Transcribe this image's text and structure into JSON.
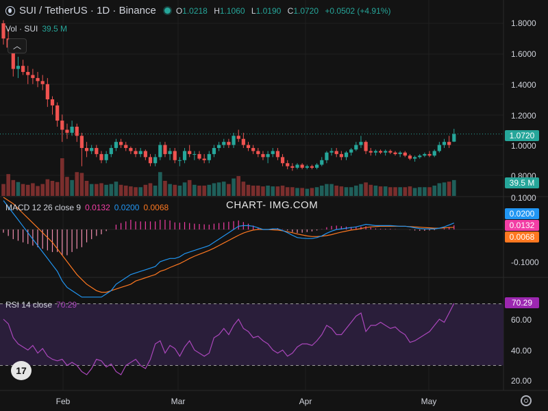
{
  "header": {
    "symbol": "SUI / TetherUS · 1D · Binance",
    "open_label": "O",
    "open": "1.0218",
    "high_label": "H",
    "high": "1.1060",
    "low_label": "L",
    "low": "1.0190",
    "close_label": "C",
    "close": "1.0720",
    "change": "+0.0502 (+4.91%)"
  },
  "volume": {
    "label": "Vol · SUI",
    "value": "39.5 M"
  },
  "macd": {
    "label": "MACD 12 26 close 9",
    "hist": "0.0132",
    "macd": "0.0200",
    "signal": "0.0068"
  },
  "rsi": {
    "label": "RSI 14 close",
    "value": "70.29"
  },
  "watermark": "CHART- IMG.COM",
  "colors": {
    "up": "#26a69a",
    "down": "#ef5350",
    "macd": "#2196f3",
    "signal": "#ff7820",
    "hist_pos": "#f23ea5",
    "rsi": "#ab47bc",
    "rsi_band": "#2a1e3a"
  },
  "price_axis": [
    "1.8000",
    "1.6000",
    "1.4000",
    "1.2000",
    "1.0000",
    "0.8000"
  ],
  "macd_axis": [
    "0.1000",
    "-0.1000"
  ],
  "rsi_axis": [
    "60.00",
    "40.00",
    "20.00"
  ],
  "time_axis": [
    "Feb",
    "Mar",
    "Apr",
    "May"
  ],
  "badges": {
    "price": "1.0720",
    "volume": "39.5 M",
    "macd": "0.0200",
    "hist": "0.0132",
    "signal": "0.0068",
    "rsi": "70.29"
  },
  "chart_data": {
    "type": "candlestick",
    "title": "SUI / TetherUS · 1D · Binance",
    "price_range": [
      0.8,
      1.85
    ],
    "rsi_levels": [
      70,
      30
    ],
    "candles": [
      [
        1.8,
        1.82,
        1.66,
        1.7
      ],
      [
        1.7,
        1.76,
        1.62,
        1.64
      ],
      [
        1.64,
        1.68,
        1.45,
        1.5
      ],
      [
        1.5,
        1.58,
        1.44,
        1.52
      ],
      [
        1.52,
        1.56,
        1.46,
        1.48
      ],
      [
        1.48,
        1.52,
        1.4,
        1.46
      ],
      [
        1.46,
        1.5,
        1.4,
        1.44
      ],
      [
        1.44,
        1.48,
        1.38,
        1.42
      ],
      [
        1.42,
        1.46,
        1.36,
        1.4
      ],
      [
        1.4,
        1.44,
        1.25,
        1.3
      ],
      [
        1.3,
        1.32,
        1.2,
        1.26
      ],
      [
        1.26,
        1.28,
        1.12,
        1.16
      ],
      [
        1.16,
        1.2,
        1.02,
        1.1
      ],
      [
        1.1,
        1.14,
        1.04,
        1.08
      ],
      [
        1.08,
        1.16,
        1.06,
        1.12
      ],
      [
        1.12,
        1.14,
        1.02,
        1.06
      ],
      [
        1.06,
        1.08,
        0.86,
        0.98
      ],
      [
        0.98,
        1.02,
        0.92,
        0.96
      ],
      [
        0.96,
        1.0,
        0.94,
        0.98
      ],
      [
        0.98,
        1.0,
        0.92,
        0.94
      ],
      [
        0.94,
        0.96,
        0.88,
        0.9
      ],
      [
        0.9,
        0.96,
        0.88,
        0.94
      ],
      [
        0.94,
        1.0,
        0.92,
        0.98
      ],
      [
        0.98,
        1.04,
        0.96,
        1.02
      ],
      [
        1.02,
        1.04,
        0.98,
        1.0
      ],
      [
        1.0,
        1.02,
        0.96,
        0.98
      ],
      [
        0.98,
        0.99,
        0.94,
        0.96
      ],
      [
        0.96,
        0.98,
        0.92,
        0.94
      ],
      [
        0.94,
        0.98,
        0.92,
        0.96
      ],
      [
        0.96,
        0.97,
        0.9,
        0.92
      ],
      [
        0.92,
        0.94,
        0.86,
        0.88
      ],
      [
        0.88,
        0.94,
        0.86,
        0.92
      ],
      [
        0.92,
        1.02,
        0.9,
        1.0
      ],
      [
        1.0,
        1.02,
        0.92,
        0.94
      ],
      [
        0.94,
        0.98,
        0.9,
        0.96
      ],
      [
        0.96,
        0.98,
        0.88,
        0.9
      ],
      [
        0.9,
        0.92,
        0.86,
        0.9
      ],
      [
        0.9,
        0.98,
        0.88,
        0.96
      ],
      [
        0.96,
        1.0,
        0.92,
        0.94
      ],
      [
        0.94,
        0.96,
        0.9,
        0.94
      ],
      [
        0.94,
        0.96,
        0.9,
        0.91
      ],
      [
        0.91,
        0.94,
        0.88,
        0.9
      ],
      [
        0.9,
        0.96,
        0.88,
        0.94
      ],
      [
        0.94,
        1.0,
        0.92,
        0.98
      ],
      [
        0.98,
        1.02,
        0.96,
        1.0
      ],
      [
        1.0,
        1.04,
        0.98,
        1.02
      ],
      [
        1.02,
        1.04,
        0.98,
        1.0
      ],
      [
        1.0,
        1.08,
        0.98,
        1.06
      ],
      [
        1.06,
        1.1,
        1.02,
        1.04
      ],
      [
        1.04,
        1.08,
        0.98,
        1.0
      ],
      [
        1.0,
        1.02,
        0.96,
        0.98
      ],
      [
        0.98,
        1.0,
        0.94,
        0.96
      ],
      [
        0.96,
        0.98,
        0.92,
        0.94
      ],
      [
        0.94,
        0.96,
        0.9,
        0.92
      ],
      [
        0.92,
        0.96,
        0.88,
        0.94
      ],
      [
        0.94,
        0.98,
        0.92,
        0.96
      ],
      [
        0.96,
        0.98,
        0.9,
        0.92
      ],
      [
        0.92,
        0.94,
        0.86,
        0.88
      ],
      [
        0.88,
        0.9,
        0.84,
        0.86
      ],
      [
        0.86,
        0.88,
        0.83,
        0.85
      ],
      [
        0.85,
        0.88,
        0.84,
        0.87
      ],
      [
        0.87,
        0.88,
        0.84,
        0.85
      ],
      [
        0.85,
        0.87,
        0.84,
        0.86
      ],
      [
        0.86,
        0.87,
        0.84,
        0.85
      ],
      [
        0.85,
        0.88,
        0.84,
        0.87
      ],
      [
        0.87,
        0.92,
        0.86,
        0.9
      ],
      [
        0.9,
        0.96,
        0.88,
        0.95
      ],
      [
        0.95,
        0.98,
        0.93,
        0.96
      ],
      [
        0.96,
        0.98,
        0.92,
        0.94
      ],
      [
        0.94,
        0.96,
        0.9,
        0.92
      ],
      [
        0.92,
        0.96,
        0.9,
        0.95
      ],
      [
        0.95,
        0.98,
        0.93,
        0.97
      ],
      [
        0.97,
        1.02,
        0.96,
        1.0
      ],
      [
        1.0,
        1.06,
        0.98,
        1.02
      ],
      [
        1.02,
        1.03,
        0.94,
        0.96
      ],
      [
        0.96,
        0.98,
        0.93,
        0.95
      ],
      [
        0.95,
        0.97,
        0.93,
        0.96
      ],
      [
        0.96,
        0.97,
        0.94,
        0.95
      ],
      [
        0.95,
        0.97,
        0.93,
        0.96
      ],
      [
        0.96,
        0.97,
        0.94,
        0.95
      ],
      [
        0.95,
        0.96,
        0.93,
        0.94
      ],
      [
        0.94,
        0.96,
        0.92,
        0.95
      ],
      [
        0.95,
        0.96,
        0.92,
        0.93
      ],
      [
        0.93,
        0.94,
        0.9,
        0.91
      ],
      [
        0.91,
        0.93,
        0.89,
        0.92
      ],
      [
        0.92,
        0.94,
        0.91,
        0.93
      ],
      [
        0.93,
        0.95,
        0.92,
        0.94
      ],
      [
        0.94,
        0.96,
        0.92,
        0.93
      ],
      [
        0.93,
        0.97,
        0.92,
        0.96
      ],
      [
        0.96,
        1.02,
        0.95,
        1.0
      ],
      [
        1.0,
        1.04,
        0.98,
        1.02
      ],
      [
        1.02,
        1.06,
        0.98,
        1.0
      ],
      [
        1.0218,
        1.106,
        1.019,
        1.072
      ]
    ],
    "volume": [
      30,
      55,
      40,
      35,
      30,
      28,
      32,
      25,
      30,
      42,
      38,
      35,
      95,
      48,
      40,
      60,
      58,
      38,
      30,
      30,
      32,
      28,
      30,
      36,
      28,
      26,
      24,
      22,
      22,
      28,
      32,
      26,
      60,
      38,
      30,
      28,
      26,
      34,
      40,
      28,
      26,
      26,
      28,
      32,
      34,
      36,
      30,
      44,
      50,
      36,
      28,
      26,
      26,
      24,
      26,
      24,
      24,
      26,
      22,
      22,
      20,
      20,
      18,
      20,
      22,
      26,
      30,
      30,
      26,
      24,
      22,
      22,
      26,
      30,
      34,
      28,
      26,
      24,
      24,
      22,
      22,
      22,
      22,
      24,
      20,
      22,
      22,
      22,
      26,
      32,
      34,
      36,
      40
    ],
    "macd_line": [
      0.09,
      0.07,
      0.05,
      0.03,
      0.01,
      -0.01,
      -0.03,
      -0.05,
      -0.07,
      -0.09,
      -0.11,
      -0.13,
      -0.16,
      -0.18,
      -0.19,
      -0.2,
      -0.21,
      -0.21,
      -0.21,
      -0.21,
      -0.21,
      -0.2,
      -0.19,
      -0.17,
      -0.16,
      -0.15,
      -0.14,
      -0.135,
      -0.13,
      -0.125,
      -0.12,
      -0.115,
      -0.1,
      -0.095,
      -0.09,
      -0.09,
      -0.085,
      -0.075,
      -0.07,
      -0.065,
      -0.06,
      -0.055,
      -0.05,
      -0.04,
      -0.03,
      -0.02,
      -0.01,
      0.0,
      0.01,
      0.012,
      0.012,
      0.01,
      0.005,
      0.0,
      0.0,
      0.002,
      0.002,
      -0.003,
      -0.01,
      -0.018,
      -0.025,
      -0.027,
      -0.028,
      -0.028,
      -0.025,
      -0.02,
      -0.012,
      -0.005,
      0.0,
      0.002,
      0.004,
      0.006,
      0.008,
      0.012,
      0.016,
      0.014,
      0.012,
      0.012,
      0.012,
      0.012,
      0.011,
      0.01,
      0.01,
      0.008,
      0.005,
      0.003,
      0.002,
      0.002,
      0.002,
      0.004,
      0.008,
      0.014,
      0.02
    ],
    "signal_line": [
      0.1,
      0.09,
      0.08,
      0.065,
      0.05,
      0.035,
      0.02,
      0.005,
      -0.01,
      -0.025,
      -0.04,
      -0.06,
      -0.08,
      -0.1,
      -0.12,
      -0.14,
      -0.155,
      -0.17,
      -0.18,
      -0.19,
      -0.195,
      -0.195,
      -0.19,
      -0.185,
      -0.18,
      -0.175,
      -0.17,
      -0.16,
      -0.155,
      -0.15,
      -0.145,
      -0.14,
      -0.13,
      -0.125,
      -0.118,
      -0.112,
      -0.106,
      -0.098,
      -0.09,
      -0.083,
      -0.077,
      -0.071,
      -0.065,
      -0.058,
      -0.05,
      -0.042,
      -0.034,
      -0.026,
      -0.018,
      -0.011,
      -0.006,
      -0.002,
      0.0,
      0.0,
      0.0,
      -0.001,
      -0.002,
      -0.004,
      -0.007,
      -0.01,
      -0.014,
      -0.017,
      -0.02,
      -0.022,
      -0.022,
      -0.021,
      -0.019,
      -0.016,
      -0.012,
      -0.008,
      -0.005,
      -0.002,
      0.0,
      0.003,
      0.006,
      0.008,
      0.009,
      0.01,
      0.01,
      0.01,
      0.01,
      0.01,
      0.01,
      0.009,
      0.008,
      0.007,
      0.006,
      0.005,
      0.004,
      0.004,
      0.005,
      0.006,
      0.0068
    ],
    "rsi": [
      60,
      57,
      48,
      44,
      42,
      40,
      43,
      38,
      41,
      36,
      34,
      33,
      34,
      30,
      32,
      30,
      26,
      24,
      28,
      34,
      33,
      29,
      31,
      26,
      24,
      30,
      32,
      34,
      30,
      28,
      34,
      44,
      46,
      38,
      43,
      41,
      36,
      42,
      46,
      40,
      38,
      36,
      38,
      48,
      50,
      54,
      50,
      56,
      60,
      54,
      52,
      48,
      49,
      46,
      44,
      40,
      38,
      40,
      36,
      38,
      42,
      44,
      44,
      43,
      46,
      50,
      56,
      54,
      50,
      50,
      54,
      58,
      62,
      64,
      52,
      56,
      56,
      58,
      56,
      54,
      55,
      52,
      50,
      45,
      46,
      48,
      50,
      52,
      56,
      60,
      58,
      64,
      70.29
    ]
  }
}
